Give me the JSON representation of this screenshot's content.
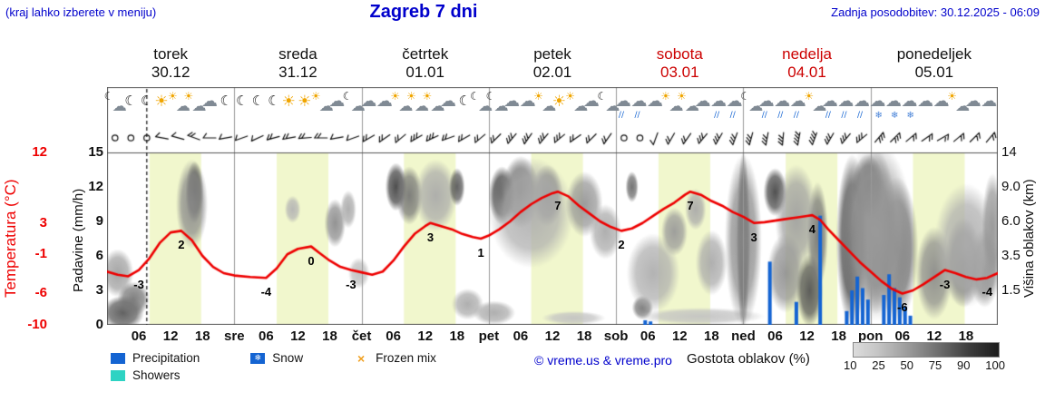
{
  "header": {
    "hint": "(kraj lahko izberete v meniju)",
    "title": "Zagreb 7 dni",
    "updated": "Zadnja posodobitev: 30.12.2025 - 06:09"
  },
  "colors": {
    "accent_blue": "#0000cc",
    "temp_red": "#ee0000",
    "weekend_red": "#cc0000",
    "precip_blue": "#1464d2",
    "showers_cyan": "#2ed3c3",
    "frozen_orange": "#f0a020",
    "daylight_band": "#f1f7cd"
  },
  "days": [
    {
      "name": "torek",
      "date": "30.12",
      "weekend": false
    },
    {
      "name": "sreda",
      "date": "31.12",
      "weekend": false
    },
    {
      "name": "četrtek",
      "date": "01.01",
      "weekend": false
    },
    {
      "name": "petek",
      "date": "02.01",
      "weekend": false
    },
    {
      "name": "sobota",
      "date": "03.01",
      "weekend": true
    },
    {
      "name": "nedelja",
      "date": "04.01",
      "weekend": true
    },
    {
      "name": "ponedeljek",
      "date": "05.01",
      "weekend": false
    }
  ],
  "axes": {
    "left_temp": {
      "title": "Temperatura (°C)",
      "ticks": [
        12,
        3,
        -1,
        -6,
        -10
      ]
    },
    "left_precip": {
      "title": "Padavine (mm/h)",
      "ticks": [
        15,
        12,
        9,
        6,
        3,
        0
      ]
    },
    "right_cloud": {
      "title": "Višina oblakov (km)",
      "ticks": [
        "14",
        "9.0",
        "6.0",
        "3.5",
        "1.5"
      ]
    }
  },
  "x_axis": {
    "hour_labels": [
      "06",
      "12",
      "18"
    ],
    "day_abbrevs": [
      "sre",
      "čet",
      "pet",
      "sob",
      "ned",
      "pon"
    ]
  },
  "icon_glyphs": {
    "sun": "☀",
    "moon": "☾",
    "cloud": "☁",
    "drops": "∕∕",
    "flake": "❄"
  },
  "chart_data": {
    "type": "meteogram",
    "hours_span": 168,
    "temp_axis": {
      "min": -10,
      "max": 12,
      "unit": "°C"
    },
    "precip_axis": {
      "min": 0,
      "max": 15,
      "unit": "mm/h"
    },
    "daylight_band_hours": [
      8,
      17.75
    ],
    "current_time_hour": 7.5,
    "temperature_series": [
      [
        0,
        -3.2
      ],
      [
        2,
        -3.6
      ],
      [
        4,
        -3.8
      ],
      [
        6,
        -3
      ],
      [
        8,
        -1.5
      ],
      [
        10,
        0.5
      ],
      [
        12,
        1.8
      ],
      [
        14,
        2
      ],
      [
        16,
        0.8
      ],
      [
        18,
        -1.2
      ],
      [
        20,
        -2.6
      ],
      [
        22,
        -3.4
      ],
      [
        24,
        -3.7
      ],
      [
        27,
        -3.9
      ],
      [
        30,
        -4
      ],
      [
        32,
        -2.8
      ],
      [
        34,
        -1
      ],
      [
        36,
        -0.3
      ],
      [
        38.5,
        0
      ],
      [
        40,
        -0.8
      ],
      [
        42,
        -1.8
      ],
      [
        44,
        -2.6
      ],
      [
        46,
        -3
      ],
      [
        48,
        -3.3
      ],
      [
        50,
        -3.6
      ],
      [
        52,
        -3.2
      ],
      [
        54,
        -1.8
      ],
      [
        56,
        0
      ],
      [
        58,
        1.6
      ],
      [
        60,
        2.6
      ],
      [
        61,
        3
      ],
      [
        63,
        2.6
      ],
      [
        65,
        2.2
      ],
      [
        67,
        1.6
      ],
      [
        69,
        1.2
      ],
      [
        70.5,
        1
      ],
      [
        72,
        1.4
      ],
      [
        74,
        2.2
      ],
      [
        76,
        3.2
      ],
      [
        78,
        4.4
      ],
      [
        80,
        5.4
      ],
      [
        82,
        6.2
      ],
      [
        84,
        6.8
      ],
      [
        85,
        7
      ],
      [
        87,
        6.4
      ],
      [
        89,
        5.2
      ],
      [
        91,
        4.2
      ],
      [
        93,
        3.2
      ],
      [
        95,
        2.5
      ],
      [
        97,
        2
      ],
      [
        99,
        2.3
      ],
      [
        101,
        3
      ],
      [
        103,
        3.9
      ],
      [
        105,
        4.8
      ],
      [
        107,
        5.6
      ],
      [
        109,
        6.6
      ],
      [
        110,
        7
      ],
      [
        112,
        6.6
      ],
      [
        114,
        5.8
      ],
      [
        116,
        5.2
      ],
      [
        118,
        4.4
      ],
      [
        120,
        3.8
      ],
      [
        122,
        3
      ],
      [
        124,
        3.1
      ],
      [
        126,
        3.3
      ],
      [
        128,
        3.5
      ],
      [
        130,
        3.7
      ],
      [
        132,
        3.9
      ],
      [
        133,
        4
      ],
      [
        134.5,
        3.4
      ],
      [
        136,
        2.2
      ],
      [
        138,
        0.8
      ],
      [
        140,
        -0.6
      ],
      [
        142,
        -2
      ],
      [
        144,
        -3.2
      ],
      [
        146,
        -4.4
      ],
      [
        148,
        -5.4
      ],
      [
        150,
        -6
      ],
      [
        152,
        -5.6
      ],
      [
        154,
        -4.8
      ],
      [
        156,
        -3.9
      ],
      [
        158,
        -3
      ],
      [
        160,
        -3.4
      ],
      [
        162,
        -3.9
      ],
      [
        164,
        -4.2
      ],
      [
        166,
        -4
      ],
      [
        168,
        -3.4
      ]
    ],
    "temperature_labels": [
      {
        "t": 6,
        "v": -3,
        "label": "-3"
      },
      {
        "t": 14,
        "v": 2,
        "label": "2"
      },
      {
        "t": 30,
        "v": -4,
        "label": "-4"
      },
      {
        "t": 38.5,
        "v": 0,
        "label": "0"
      },
      {
        "t": 46,
        "v": -3,
        "label": "-3"
      },
      {
        "t": 61,
        "v": 3,
        "label": "3"
      },
      {
        "t": 70.5,
        "v": 1,
        "label": "1"
      },
      {
        "t": 85,
        "v": 7,
        "label": "7"
      },
      {
        "t": 97,
        "v": 2,
        "label": "2"
      },
      {
        "t": 110,
        "v": 7,
        "label": "7"
      },
      {
        "t": 122,
        "v": 3,
        "label": "3"
      },
      {
        "t": 133,
        "v": 4,
        "label": "4"
      },
      {
        "t": 150,
        "v": -6,
        "label": "-6"
      },
      {
        "t": 158,
        "v": -3,
        "label": "-3"
      },
      {
        "t": 166,
        "v": -4,
        "label": "-4"
      }
    ],
    "precip_bar_format": "[hour, mm_per_h]",
    "precipitation_bars": [
      [
        101.5,
        0.4
      ],
      [
        102.5,
        0.3
      ],
      [
        125,
        5.5
      ],
      [
        130,
        2
      ],
      [
        134.5,
        9.5
      ],
      [
        139.5,
        1.2
      ],
      [
        140.5,
        3
      ],
      [
        141.5,
        4.2
      ],
      [
        142.5,
        3.2
      ],
      [
        143.5,
        2.2
      ],
      [
        146.5,
        2.6
      ],
      [
        147.5,
        4.4
      ],
      [
        148.5,
        3.2
      ],
      [
        149.5,
        2.4
      ],
      [
        150.5,
        1.6
      ],
      [
        151.5,
        0.8
      ]
    ],
    "cloud_blob_format": "[hour, y_fraction_top0, radius_hours, radius_y_fraction, density_percent]",
    "cloud_blobs": [
      [
        3,
        0.93,
        4,
        0.1,
        70
      ],
      [
        2,
        0.7,
        3,
        0.14,
        35
      ],
      [
        5,
        0.85,
        3,
        0.1,
        55
      ],
      [
        16.5,
        0.23,
        1.7,
        0.18,
        85
      ],
      [
        16,
        0.3,
        3,
        0.26,
        45
      ],
      [
        35,
        0.33,
        1.5,
        0.08,
        25
      ],
      [
        43,
        0.41,
        2,
        0.14,
        45
      ],
      [
        45.5,
        0.33,
        1.5,
        0.11,
        30
      ],
      [
        47.5,
        0.7,
        2,
        0.09,
        20
      ],
      [
        54.5,
        0.2,
        2,
        0.14,
        80
      ],
      [
        57,
        0.25,
        2.5,
        0.17,
        55
      ],
      [
        62,
        0.25,
        4,
        0.21,
        30
      ],
      [
        66,
        0.2,
        1.5,
        0.11,
        70
      ],
      [
        68,
        0.88,
        3,
        0.09,
        30
      ],
      [
        74.5,
        0.25,
        2.5,
        0.17,
        85
      ],
      [
        78,
        0.23,
        3.5,
        0.21,
        65
      ],
      [
        83,
        0.25,
        3,
        0.18,
        50
      ],
      [
        80,
        0.35,
        8,
        0.32,
        28
      ],
      [
        73,
        0.93,
        4,
        0.07,
        30
      ],
      [
        88,
        0.96,
        6,
        0.04,
        18
      ],
      [
        90,
        0.3,
        3.5,
        0.19,
        40
      ],
      [
        94,
        0.46,
        3,
        0.16,
        30
      ],
      [
        99,
        0.2,
        1.2,
        0.09,
        60
      ],
      [
        101,
        0.9,
        2,
        0.07,
        55
      ],
      [
        103,
        0.7,
        5,
        0.23,
        28
      ],
      [
        107,
        0.46,
        2.5,
        0.14,
        38
      ],
      [
        111,
        0.33,
        2,
        0.12,
        30
      ],
      [
        114,
        0.64,
        3,
        0.19,
        30
      ],
      [
        112,
        0.95,
        12,
        0.05,
        18
      ],
      [
        120,
        0.51,
        1.3,
        0.52,
        88
      ],
      [
        120,
        0.51,
        3.5,
        0.5,
        45
      ],
      [
        126,
        0.23,
        2.2,
        0.14,
        78
      ],
      [
        128,
        0.7,
        3.5,
        0.23,
        42
      ],
      [
        132.5,
        0.8,
        2.5,
        0.21,
        72
      ],
      [
        134,
        0.48,
        2,
        0.31,
        55
      ],
      [
        130,
        0.38,
        4,
        0.31,
        35
      ],
      [
        140.5,
        0.51,
        3,
        0.5,
        82
      ],
      [
        145,
        0.46,
        4,
        0.48,
        72
      ],
      [
        149,
        0.56,
        4,
        0.42,
        62
      ],
      [
        143.5,
        0.2,
        3,
        0.19,
        68
      ],
      [
        145,
        0.46,
        7,
        0.52,
        35
      ],
      [
        156,
        0.7,
        3.5,
        0.27,
        45
      ],
      [
        161.5,
        0.64,
        3.5,
        0.26,
        58
      ],
      [
        165.5,
        0.67,
        3,
        0.23,
        48
      ],
      [
        162,
        0.54,
        6,
        0.36,
        28
      ],
      [
        167,
        0.43,
        2,
        0.31,
        40
      ]
    ],
    "wind_barb_format": "0 = calm circle, [direction_deg, feather_count]",
    "wind_barbs": [
      0,
      0,
      0,
      [
        280,
        1
      ],
      [
        285,
        1
      ],
      [
        290,
        2
      ],
      [
        270,
        1
      ],
      [
        260,
        1
      ],
      [
        250,
        1
      ],
      [
        245,
        1
      ],
      [
        255,
        2
      ],
      [
        260,
        2
      ],
      [
        265,
        2
      ],
      [
        270,
        2
      ],
      [
        260,
        1
      ],
      [
        250,
        1
      ],
      [
        240,
        2
      ],
      [
        235,
        2
      ],
      [
        230,
        2
      ],
      [
        240,
        3
      ],
      [
        245,
        3
      ],
      [
        250,
        2
      ],
      [
        240,
        2
      ],
      [
        230,
        2
      ],
      [
        225,
        2
      ],
      [
        220,
        3
      ],
      [
        215,
        3
      ],
      [
        220,
        3
      ],
      [
        230,
        3
      ],
      [
        235,
        2
      ],
      [
        225,
        2
      ],
      [
        215,
        2
      ],
      0,
      0,
      [
        200,
        1
      ],
      [
        210,
        2
      ],
      [
        215,
        2
      ],
      [
        220,
        3
      ],
      [
        210,
        3
      ],
      [
        200,
        3
      ],
      [
        195,
        3
      ],
      [
        190,
        3
      ],
      [
        185,
        3
      ],
      [
        190,
        4
      ],
      [
        200,
        4
      ],
      [
        210,
        3
      ],
      [
        220,
        3
      ],
      [
        230,
        3
      ],
      [
        40,
        3
      ],
      [
        45,
        3
      ],
      [
        50,
        2
      ],
      [
        55,
        2
      ],
      [
        60,
        2
      ],
      [
        50,
        2
      ],
      [
        45,
        2
      ],
      [
        40,
        2
      ]
    ],
    "weather_icons": [
      "moon-cloud",
      "moon",
      "moon",
      "sun",
      "sun-cloud",
      "sun-cloud",
      "cloud",
      "moon",
      "moon",
      "moon",
      "moon",
      "sun",
      "sun",
      "sun-cloud",
      "cloud",
      "moon-cloud",
      "cloud",
      "cloud",
      "sun-cloud",
      "sun-cloud",
      "sun-cloud",
      "cloud",
      "moon",
      "moon-cloud",
      "moon-cloud",
      "cloud",
      "cloud",
      "sun-cloud",
      "sun",
      "sun-cloud",
      "cloud",
      "moon-cloud",
      "rain",
      "rain",
      "cloud",
      "sun-cloud",
      "sun-cloud",
      "cloud",
      "rain",
      "rain",
      "moon-cloud",
      "rain",
      "rain",
      "rain",
      "sun-cloud",
      "rain",
      "rain",
      "rain",
      "snow",
      "snow",
      "snow",
      "cloud",
      "cloud",
      "sun-cloud",
      "cloud",
      "cloud"
    ]
  },
  "legend": {
    "items": [
      {
        "label": "Precipitation",
        "swatch": "precip"
      },
      {
        "label": "Snow",
        "swatch": "snow"
      },
      {
        "label": "Frozen mix",
        "swatch": "frozen"
      },
      {
        "label": "Showers",
        "swatch": "showers"
      }
    ]
  },
  "cloud_scale": {
    "label": "Gostota oblakov (%)",
    "stops": [
      "10",
      "25",
      "50",
      "75",
      "90",
      "100"
    ]
  },
  "credit": "© vreme.us & vreme.pro"
}
